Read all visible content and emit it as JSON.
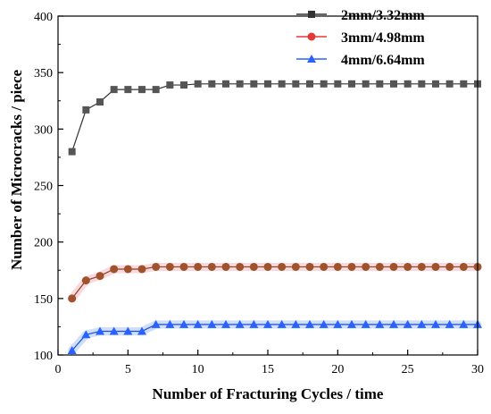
{
  "chart_data": {
    "type": "line",
    "xlabel": "Number of Fracturing Cycles / time",
    "ylabel": "Number of Microcracks / piece",
    "xlim": [
      0,
      30
    ],
    "ylim": [
      100,
      400
    ],
    "xticks": [
      0,
      5,
      10,
      15,
      20,
      25,
      30
    ],
    "yticks": [
      100,
      150,
      200,
      250,
      300,
      350,
      400
    ],
    "legend_position": "top-right",
    "x": [
      1,
      2,
      3,
      4,
      5,
      6,
      7,
      8,
      9,
      10,
      11,
      12,
      13,
      14,
      15,
      16,
      17,
      18,
      19,
      20,
      21,
      22,
      23,
      24,
      25,
      26,
      27,
      28,
      29,
      30
    ],
    "series": [
      {
        "name": "2mm/3.32mm",
        "marker": "square",
        "color": "#333333",
        "values": [
          280,
          317,
          324,
          335,
          335,
          335,
          335,
          339,
          339,
          340,
          340,
          340,
          340,
          340,
          340,
          340,
          340,
          340,
          340,
          340,
          340,
          340,
          340,
          340,
          340,
          340,
          340,
          340,
          340,
          340
        ]
      },
      {
        "name": "3mm/4.98mm",
        "marker": "circle",
        "color": "#e53935",
        "values": [
          150,
          166,
          170,
          176,
          176,
          176,
          178,
          178,
          178,
          178,
          178,
          178,
          178,
          178,
          178,
          178,
          178,
          178,
          178,
          178,
          178,
          178,
          178,
          178,
          178,
          178,
          178,
          178,
          178,
          178
        ]
      },
      {
        "name": "4mm/6.64mm",
        "marker": "triangle",
        "color": "#2962ff",
        "values": [
          104,
          118,
          121,
          121,
          121,
          121,
          127,
          127,
          127,
          127,
          127,
          127,
          127,
          127,
          127,
          127,
          127,
          127,
          127,
          127,
          127,
          127,
          127,
          127,
          127,
          127,
          127,
          127,
          127,
          127
        ]
      }
    ]
  }
}
